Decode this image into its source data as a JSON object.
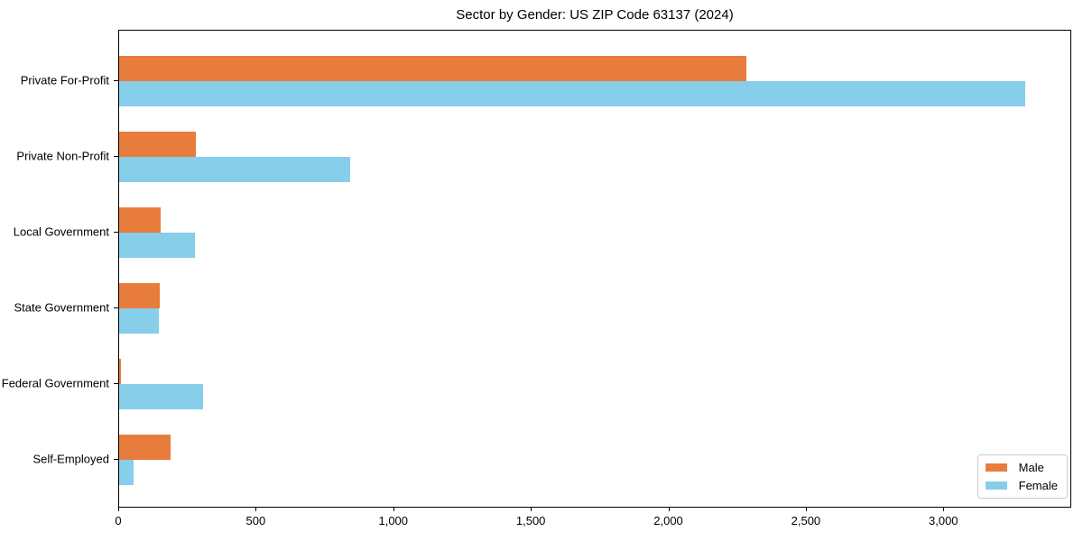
{
  "title": "Sector by Gender: US ZIP Code 63137 (2024)",
  "chart_data": {
    "type": "bar",
    "orientation": "horizontal",
    "title": "Sector by Gender: US ZIP Code 63137 (2024)",
    "categories": [
      "Private For-Profit",
      "Private Non-Profit",
      "Local Government",
      "State Government",
      "Federal Government",
      "Self-Employed"
    ],
    "series": [
      {
        "name": "Male",
        "color": "#e87c3c",
        "values": [
          2285,
          280,
          151,
          148,
          8,
          188
        ]
      },
      {
        "name": "Female",
        "color": "#87ceeb",
        "values": [
          3300,
          843,
          276,
          146,
          306,
          53
        ]
      }
    ],
    "xlabel": "",
    "ylabel": "",
    "xlim": [
      0,
      3465
    ],
    "xticks": [
      0,
      500,
      1000,
      1500,
      2000,
      2500,
      3000
    ],
    "xtick_labels": [
      "0",
      "500",
      "1,000",
      "1,500",
      "2,000",
      "2,500",
      "3,000"
    ],
    "grid": false,
    "legend": {
      "position": "lower right",
      "entries": [
        "Male",
        "Female"
      ]
    }
  }
}
